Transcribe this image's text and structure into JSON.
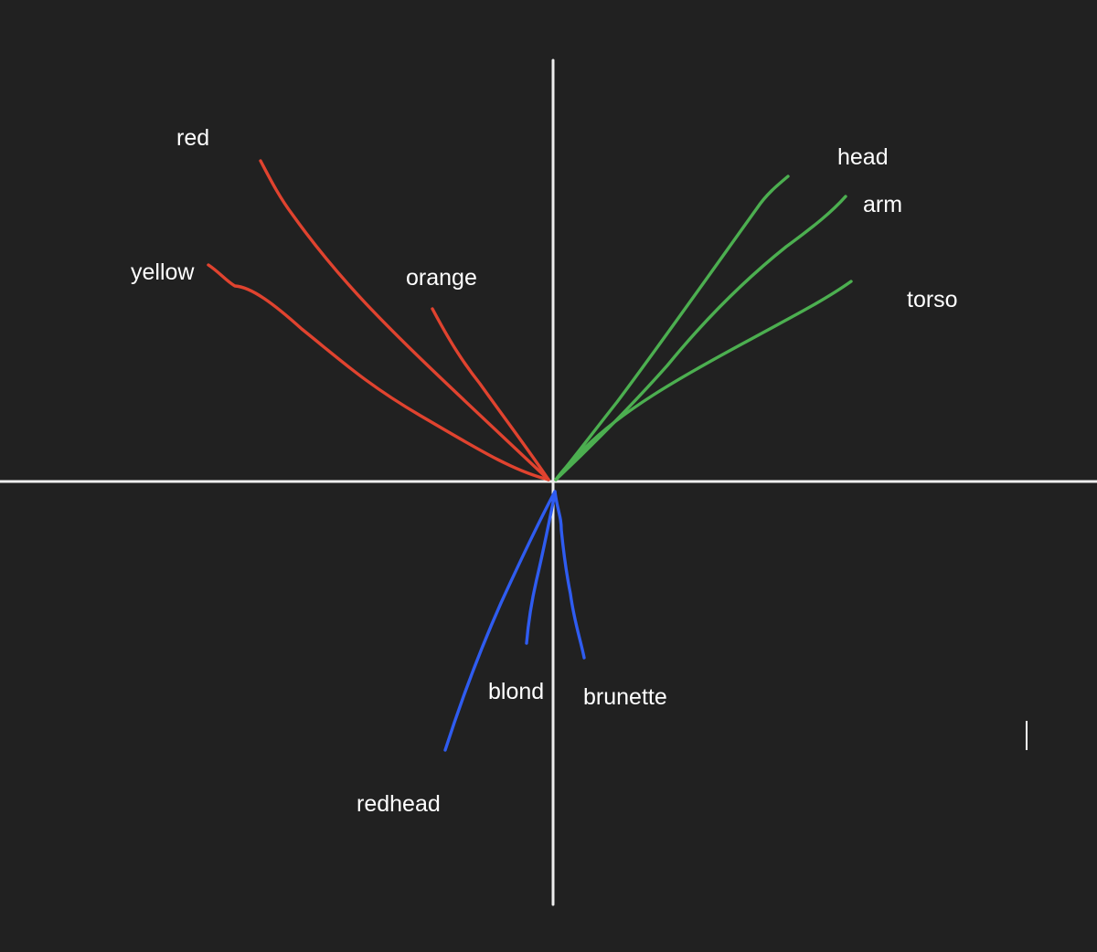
{
  "palette": {
    "background": "#212121",
    "axis": "#eeeeee",
    "text": "#ffffff"
  },
  "groups": {
    "colors": {
      "color": "#e0432f",
      "words": [
        "red",
        "yellow",
        "orange"
      ]
    },
    "body_parts": {
      "color": "#4caf50",
      "words": [
        "head",
        "arm",
        "torso"
      ]
    },
    "hair": {
      "color": "#2f5cf0",
      "words": [
        "blond",
        "brunette",
        "redhead"
      ]
    }
  }
}
